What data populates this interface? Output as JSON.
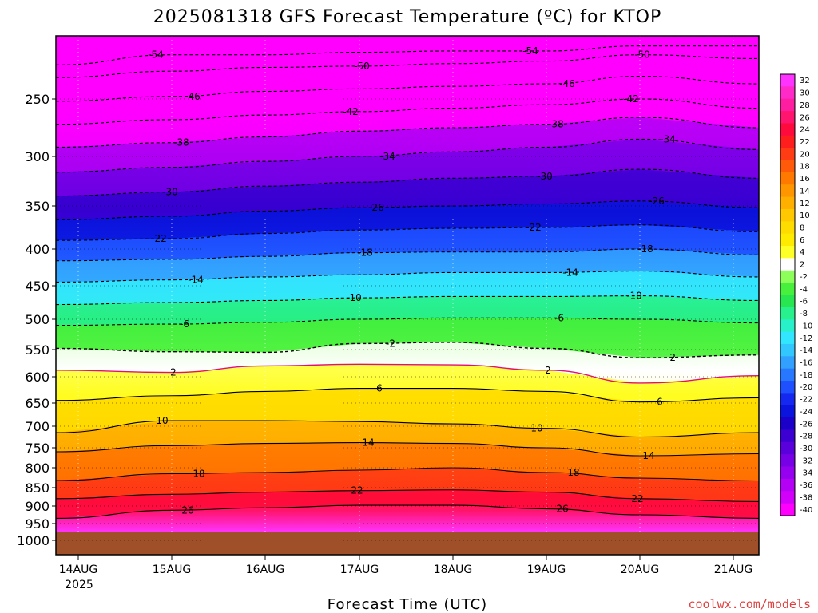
{
  "chart_data": {
    "type": "heatmap",
    "title": "2025081318 GFS Forecast Temperature (ºC) for KTOP",
    "xlabel": "Forecast Time (UTC)",
    "ylabel": "",
    "x_ticks": [
      "14AUG",
      "15AUG",
      "16AUG",
      "17AUG",
      "18AUG",
      "19AUG",
      "20AUG",
      "21AUG"
    ],
    "x_year_label": "2025",
    "y_ticks": [
      "250",
      "300",
      "350",
      "400",
      "450",
      "500",
      "550",
      "600",
      "650",
      "700",
      "750",
      "800",
      "850",
      "900",
      "950",
      "1000"
    ],
    "y_tick_values": [
      250,
      300,
      350,
      400,
      450,
      500,
      550,
      600,
      650,
      700,
      750,
      800,
      850,
      900,
      950,
      1000
    ],
    "ylim": [
      200,
      1000
    ],
    "colorbar_ticks": [
      "32",
      "30",
      "28",
      "26",
      "24",
      "22",
      "20",
      "18",
      "16",
      "14",
      "12",
      "10",
      "8",
      "6",
      "4",
      "2",
      "-2",
      "-4",
      "-6",
      "-8",
      "-10",
      "-12",
      "-14",
      "-16",
      "-18",
      "-20",
      "-22",
      "-24",
      "-26",
      "-28",
      "-30",
      "-32",
      "-34",
      "-36",
      "-38",
      "-40"
    ],
    "colorbar_colors": {
      "32": "#ff33ff",
      "30": "#ff2ac8",
      "28": "#ff1ea0",
      "26": "#ff146e",
      "24": "#ff0a3c",
      "22": "#ff1e1e",
      "20": "#ff3c14",
      "18": "#ff5a0a",
      "16": "#ff7800",
      "14": "#ff9600",
      "12": "#ffaf00",
      "10": "#ffc800",
      "8": "#ffdc00",
      "6": "#ffeb00",
      "4": "#ffff28",
      "2": "#ffffff",
      "-2": "#8cff5a",
      "-4": "#46f03c",
      "-6": "#28e650",
      "-8": "#28f08c",
      "-10": "#28f0c8",
      "-12": "#32e6ff",
      "-14": "#32c8ff",
      "-16": "#32a0ff",
      "-18": "#2878ff",
      "-20": "#1e50ff",
      "-22": "#1428f0",
      "-24": "#0a14dc",
      "-26": "#1a00c8",
      "-28": "#3c00d2",
      "-30": "#5a00dc",
      "-32": "#7800e6",
      "-34": "#9600f0",
      "-36": "#b400f5",
      "-38": "#d200fa",
      "-40": "#ff00ff"
    },
    "isotherms": [
      {
        "value": -54,
        "p": [
          223,
          215,
          215,
          213,
          212,
          212,
          208,
          208
        ]
      },
      {
        "value": -50,
        "p": [
          233,
          228,
          225,
          224,
          222,
          220,
          215,
          218
        ]
      },
      {
        "value": -46,
        "p": [
          252,
          248,
          244,
          242,
          240,
          238,
          232,
          238
        ]
      },
      {
        "value": -42,
        "p": [
          272,
          268,
          264,
          261,
          258,
          255,
          250,
          258
        ]
      },
      {
        "value": -38,
        "p": [
          292,
          288,
          283,
          278,
          275,
          272,
          266,
          275
        ]
      },
      {
        "value": -34,
        "p": [
          316,
          311,
          305,
          300,
          296,
          292,
          285,
          294
        ]
      },
      {
        "value": -30,
        "p": [
          340,
          336,
          330,
          326,
          322,
          320,
          313,
          322
        ]
      },
      {
        "value": -26,
        "p": [
          366,
          362,
          356,
          352,
          350,
          348,
          345,
          352
        ]
      },
      {
        "value": -22,
        "p": [
          390,
          388,
          382,
          378,
          376,
          375,
          372,
          380
        ]
      },
      {
        "value": -18,
        "p": [
          416,
          414,
          410,
          405,
          404,
          404,
          400,
          408
        ]
      },
      {
        "value": -14,
        "p": [
          445,
          442,
          438,
          435,
          432,
          432,
          430,
          438
        ]
      },
      {
        "value": -10,
        "p": [
          478,
          475,
          472,
          468,
          466,
          466,
          465,
          472
        ]
      },
      {
        "value": -6,
        "p": [
          510,
          508,
          505,
          500,
          498,
          498,
          500,
          506
        ]
      },
      {
        "value": -2,
        "p": [
          548,
          554,
          555,
          540,
          538,
          548,
          565,
          560
        ]
      },
      {
        "value": 2,
        "p": [
          588,
          592,
          580,
          577,
          578,
          588,
          612,
          598
        ]
      },
      {
        "value": 6,
        "p": [
          645,
          636,
          628,
          622,
          622,
          628,
          648,
          640
        ]
      },
      {
        "value": 10,
        "p": [
          715,
          688,
          688,
          690,
          695,
          705,
          725,
          715
        ]
      },
      {
        "value": 14,
        "p": [
          760,
          745,
          740,
          738,
          740,
          750,
          770,
          765
        ]
      },
      {
        "value": 18,
        "p": [
          832,
          815,
          812,
          806,
          800,
          812,
          826,
          833
        ]
      },
      {
        "value": 22,
        "p": [
          880,
          868,
          862,
          858,
          856,
          862,
          880,
          888
        ]
      },
      {
        "value": 26,
        "p": [
          935,
          912,
          905,
          898,
          898,
          908,
          925,
          935
        ]
      }
    ],
    "surface_color": "#a05028",
    "grid": "dotted"
  },
  "credit": "coolwx.com/models"
}
